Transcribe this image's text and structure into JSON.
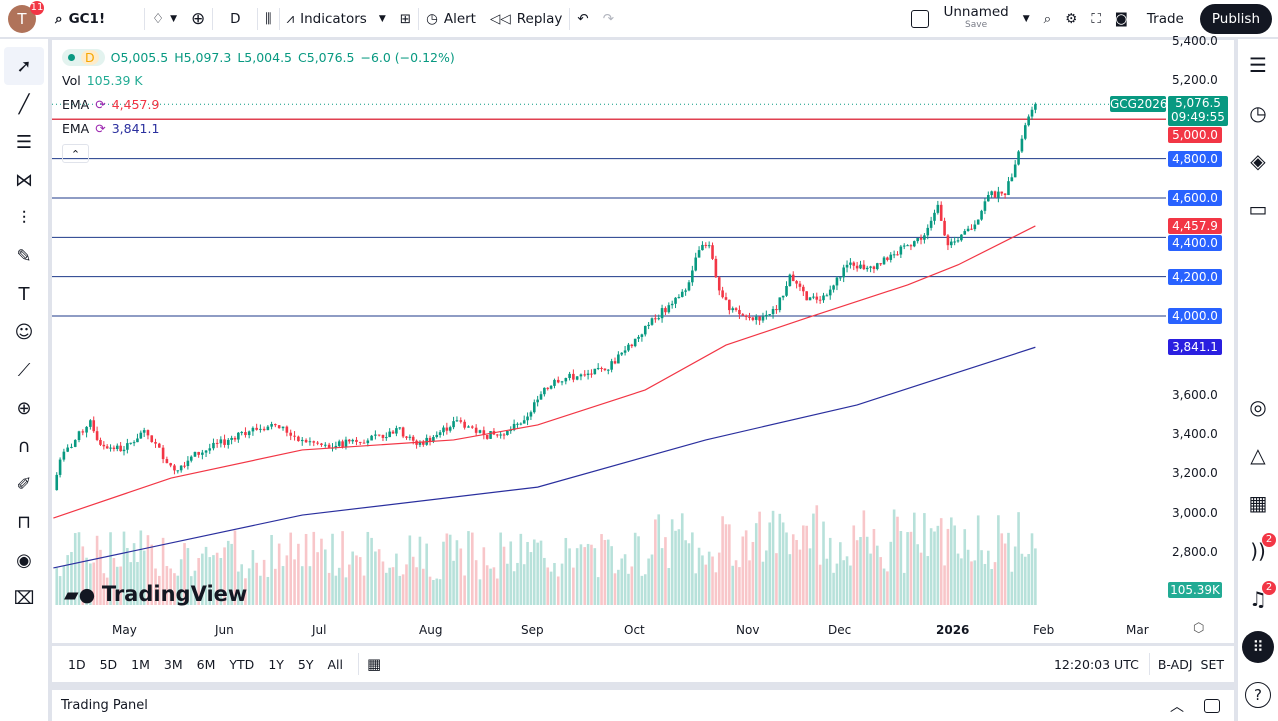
{
  "toolbar": {
    "avatar_letter": "T",
    "avatar_badge": "11",
    "symbol": "GC1!",
    "interval": "D",
    "indicators": "Indicators",
    "alert": "Alert",
    "replay": "Replay",
    "layout_name": "Unnamed",
    "layout_save": "Save",
    "trade": "Trade",
    "publish": "Publish"
  },
  "legend": {
    "o": "O5,005.5",
    "h": "H5,097.3",
    "l": "L5,004.5",
    "c": "C5,076.5",
    "change": "−6.0 (−0.12%)",
    "interval": "D",
    "vol_label": "Vol",
    "vol_value": "105.39 K",
    "ema1_label": "EMA",
    "ema1_value": "4,457.9",
    "ema2_label": "EMA",
    "ema2_value": "3,841.1"
  },
  "price_axis": {
    "ticks": [
      "5,400.0",
      "5,200.0",
      "3,600.0",
      "3,400.0",
      "3,200.0",
      "3,000.0",
      "2,800.0"
    ],
    "tick_values": [
      5400,
      5200,
      3600,
      3400,
      3200,
      3000,
      2800
    ],
    "symbol_tag": "GCG2026",
    "last_price": "5,076.5",
    "countdown": "09:49:55",
    "volume_tag": "105.39K"
  },
  "levels": [
    {
      "value": 5000,
      "label": "5,000.0",
      "color": "#f23645"
    },
    {
      "value": 4800,
      "label": "4,800.0",
      "color": "#2962ff"
    },
    {
      "value": 4600,
      "label": "4,600.0",
      "color": "#2962ff"
    },
    {
      "value": 4400,
      "label": "4,400.0",
      "color": "#2962ff"
    },
    {
      "value": 4200,
      "label": "4,200.0",
      "color": "#2962ff"
    },
    {
      "value": 4000,
      "label": "4,000.0",
      "color": "#2962ff"
    }
  ],
  "ema_tags": [
    {
      "value": 4457.9,
      "label": "4,457.9",
      "color": "#f23645"
    },
    {
      "value": 3841.1,
      "label": "3,841.1",
      "color": "#2a1fe0"
    }
  ],
  "time_axis": [
    "May",
    "Jun",
    "Jul",
    "Aug",
    "Sep",
    "Oct",
    "Nov",
    "Dec",
    "2026",
    "Feb",
    "Mar"
  ],
  "chart_data": {
    "type": "candlestick",
    "price_range": [
      2700,
      5450
    ],
    "closes": [
      [
        "2025-04-10",
        3115
      ],
      [
        "2025-04-12",
        3270
      ],
      [
        "2025-04-21",
        3470
      ],
      [
        "2025-04-24",
        3345
      ],
      [
        "2025-05-01",
        3320
      ],
      [
        "2025-05-07",
        3420
      ],
      [
        "2025-05-16",
        3215
      ],
      [
        "2025-05-21",
        3285
      ],
      [
        "2025-06-01",
        3370
      ],
      [
        "2025-06-05",
        3410
      ],
      [
        "2025-06-15",
        3445
      ],
      [
        "2025-06-23",
        3370
      ],
      [
        "2025-07-01",
        3330
      ],
      [
        "2025-07-08",
        3370
      ],
      [
        "2025-07-17",
        3380
      ],
      [
        "2025-07-21",
        3430
      ],
      [
        "2025-07-27",
        3345
      ],
      [
        "2025-08-01",
        3385
      ],
      [
        "2025-08-08",
        3470
      ],
      [
        "2025-08-16",
        3395
      ],
      [
        "2025-08-22",
        3395
      ],
      [
        "2025-08-28",
        3470
      ],
      [
        "2025-09-01",
        3575
      ],
      [
        "2025-09-06",
        3675
      ],
      [
        "2025-09-15",
        3700
      ],
      [
        "2025-09-21",
        3725
      ],
      [
        "2025-09-27",
        3825
      ],
      [
        "2025-10-04",
        3955
      ],
      [
        "2025-10-10",
        4055
      ],
      [
        "2025-10-15",
        4130
      ],
      [
        "2025-10-19",
        4335
      ],
      [
        "2025-10-22",
        4360
      ],
      [
        "2025-10-25",
        4130
      ],
      [
        "2025-10-28",
        4030
      ],
      [
        "2025-11-04",
        3980
      ],
      [
        "2025-11-11",
        4030
      ],
      [
        "2025-11-15",
        4210
      ],
      [
        "2025-11-20",
        4080
      ],
      [
        "2025-11-26",
        4105
      ],
      [
        "2025-12-02",
        4260
      ],
      [
        "2025-12-08",
        4245
      ],
      [
        "2025-12-14",
        4285
      ],
      [
        "2025-12-20",
        4360
      ],
      [
        "2025-12-25",
        4410
      ],
      [
        "2025-12-29",
        4565
      ],
      [
        "2026-01-01",
        4360
      ],
      [
        "2026-01-04",
        4385
      ],
      [
        "2026-01-09",
        4465
      ],
      [
        "2026-01-13",
        4615
      ],
      [
        "2026-01-18",
        4615
      ],
      [
        "2026-01-21",
        4770
      ],
      [
        "2026-01-24",
        4970
      ],
      [
        "2026-01-27",
        5076.5
      ]
    ],
    "ema_fast": [
      [
        "2025-04-10",
        2973
      ],
      [
        "2025-05-15",
        3176
      ],
      [
        "2025-06-23",
        3319
      ],
      [
        "2025-08-07",
        3370
      ],
      [
        "2025-09-01",
        3446
      ],
      [
        "2025-10-03",
        3624
      ],
      [
        "2025-10-27",
        3852
      ],
      [
        "2025-11-20",
        3990
      ],
      [
        "2025-12-20",
        4158
      ],
      [
        "2026-01-04",
        4260
      ],
      [
        "2026-01-27",
        4457.9
      ]
    ],
    "ema_slow": [
      [
        "2025-04-10",
        2719
      ],
      [
        "2025-06-23",
        2988
      ],
      [
        "2025-09-01",
        3130
      ],
      [
        "2025-10-21",
        3370
      ],
      [
        "2025-12-05",
        3548
      ],
      [
        "2026-01-27",
        3841.1
      ]
    ],
    "colors": {
      "up": "#089981",
      "down": "#f23645",
      "ema_fast": "#f23645",
      "ema_slow": "#2a2f9e"
    }
  },
  "watermark": "TradingView",
  "bottom": {
    "ranges": [
      "1D",
      "5D",
      "1M",
      "3M",
      "6M",
      "YTD",
      "1Y",
      "5Y",
      "All"
    ],
    "clock": "12:20:03 UTC",
    "adj": "B-ADJ",
    "session": "SET"
  },
  "panel": {
    "title": "Trading Panel"
  },
  "right": {
    "alerts_badge": "2",
    "notif_badge": "2"
  }
}
